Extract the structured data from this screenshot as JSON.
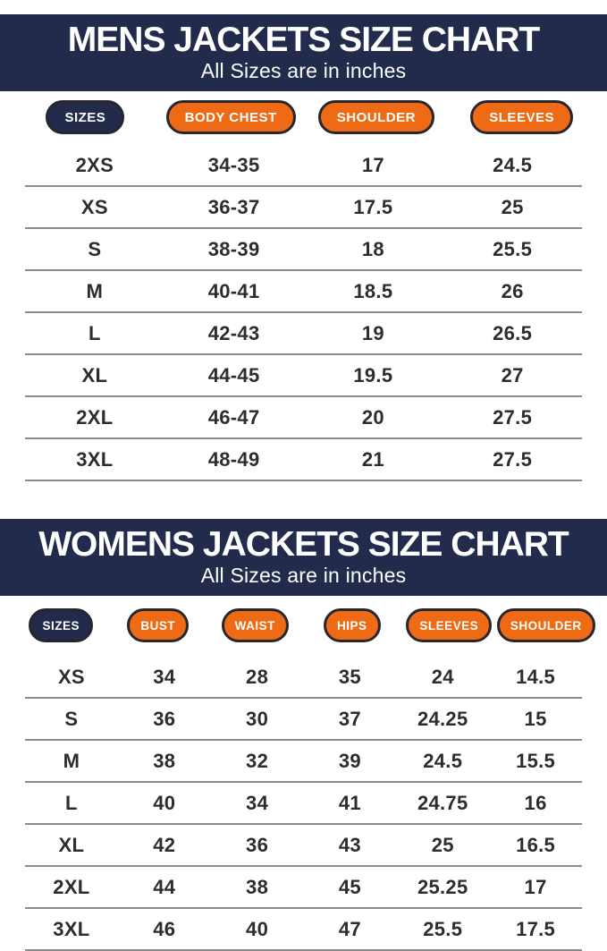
{
  "colors": {
    "navy_band": "#222B4C",
    "orange_pill": "#EE6A15",
    "pill_border": "#26262E",
    "value_text": "#2D2D30",
    "divider_line": "#8B8B8B",
    "band_text": "#FFFFFF"
  },
  "chart_data": [
    {
      "type": "table",
      "title": "MENS JACKETS SIZE CHART",
      "subtitle": "All Sizes are in inches",
      "units": "inches",
      "columns": [
        "SIZES",
        "BODY CHEST",
        "SHOULDER",
        "SLEEVES"
      ],
      "rows": [
        [
          "2XS",
          "34-35",
          "17",
          "24.5"
        ],
        [
          "XS",
          "36-37",
          "17.5",
          "25"
        ],
        [
          "S",
          "38-39",
          "18",
          "25.5"
        ],
        [
          "M",
          "40-41",
          "18.5",
          "26"
        ],
        [
          "L",
          "42-43",
          "19",
          "26.5"
        ],
        [
          "XL",
          "44-45",
          "19.5",
          "27"
        ],
        [
          "2XL",
          "46-47",
          "20",
          "27.5"
        ],
        [
          "3XL",
          "48-49",
          "21",
          "27.5"
        ]
      ]
    },
    {
      "type": "table",
      "title": "WOMENS JACKETS SIZE CHART",
      "subtitle": "All Sizes are in inches",
      "units": "inches",
      "columns": [
        "SIZES",
        "BUST",
        "WAIST",
        "HIPS",
        "SLEEVES",
        "SHOULDER"
      ],
      "rows": [
        [
          "XS",
          "34",
          "28",
          "35",
          "24",
          "14.5"
        ],
        [
          "S",
          "36",
          "30",
          "37",
          "24.25",
          "15"
        ],
        [
          "M",
          "38",
          "32",
          "39",
          "24.5",
          "15.5"
        ],
        [
          "L",
          "40",
          "34",
          "41",
          "24.75",
          "16"
        ],
        [
          "XL",
          "42",
          "36",
          "43",
          "25",
          "16.5"
        ],
        [
          "2XL",
          "44",
          "38",
          "45",
          "25.25",
          "17"
        ],
        [
          "3XL",
          "46",
          "40",
          "47",
          "25.5",
          "17.5"
        ]
      ]
    }
  ]
}
